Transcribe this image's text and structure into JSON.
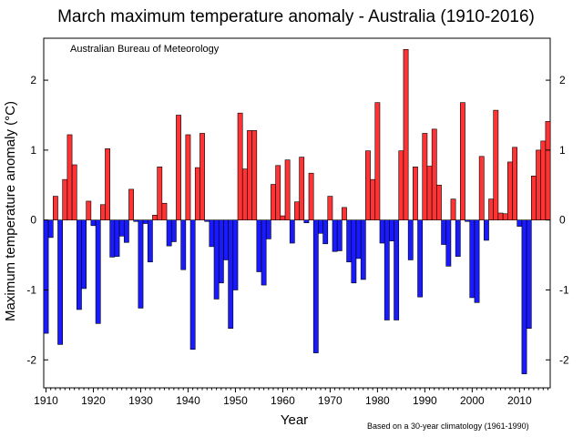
{
  "chart_data": {
    "type": "bar",
    "title": "March maximum temperature anomaly - Australia (1910-2016)",
    "annotation": "Australian Bureau of Meteorology",
    "footnote": "Based on a 30-year climatology (1961-1990)",
    "xlabel": "Year",
    "ylabel": "Maximum temperature anomaly (°C)",
    "xlim": [
      1910,
      2016
    ],
    "ylim": [
      -2.4,
      2.6
    ],
    "x_ticks": [
      1910,
      1920,
      1930,
      1940,
      1950,
      1960,
      1970,
      1980,
      1990,
      2000,
      2010
    ],
    "y_ticks": [
      -2,
      -1,
      0,
      1,
      2
    ],
    "y_tick_labels": [
      "-2",
      "-1",
      "0",
      "1",
      "2"
    ],
    "colors": {
      "positive": "#ff3333",
      "negative": "#1a1aff",
      "edge": "#000000"
    },
    "grid": false,
    "years": [
      1910,
      1911,
      1912,
      1913,
      1914,
      1915,
      1916,
      1917,
      1918,
      1919,
      1920,
      1921,
      1922,
      1923,
      1924,
      1925,
      1926,
      1927,
      1928,
      1929,
      1930,
      1931,
      1932,
      1933,
      1934,
      1935,
      1936,
      1937,
      1938,
      1939,
      1940,
      1941,
      1942,
      1943,
      1944,
      1945,
      1946,
      1947,
      1948,
      1949,
      1950,
      1951,
      1952,
      1953,
      1954,
      1955,
      1956,
      1957,
      1958,
      1959,
      1960,
      1961,
      1962,
      1963,
      1964,
      1965,
      1966,
      1967,
      1968,
      1969,
      1970,
      1971,
      1972,
      1973,
      1974,
      1975,
      1976,
      1977,
      1978,
      1979,
      1980,
      1981,
      1982,
      1983,
      1984,
      1985,
      1986,
      1987,
      1988,
      1989,
      1990,
      1991,
      1992,
      1993,
      1994,
      1995,
      1996,
      1997,
      1998,
      1999,
      2000,
      2001,
      2002,
      2003,
      2004,
      2005,
      2006,
      2007,
      2008,
      2009,
      2010,
      2011,
      2012,
      2013,
      2014,
      2015,
      2016
    ],
    "values": [
      -1.62,
      -0.25,
      0.34,
      -1.78,
      0.58,
      1.22,
      0.79,
      -1.28,
      -0.98,
      0.27,
      -0.08,
      -1.48,
      0.22,
      1.02,
      -0.53,
      -0.52,
      -0.23,
      -0.32,
      0.44,
      -0.02,
      -1.26,
      -0.05,
      -0.6,
      0.07,
      0.76,
      0.24,
      -0.37,
      -0.31,
      1.5,
      -0.71,
      1.22,
      -1.85,
      0.75,
      1.24,
      -0.02,
      -0.38,
      -1.13,
      -0.9,
      -0.57,
      -1.55,
      -1.0,
      1.53,
      0.73,
      1.28,
      1.28,
      -0.74,
      -0.93,
      -0.27,
      0.51,
      0.78,
      0.06,
      0.86,
      -0.33,
      0.26,
      0.9,
      -0.04,
      0.67,
      -1.9,
      -0.19,
      -0.34,
      0.34,
      -0.45,
      -0.44,
      0.18,
      -0.6,
      -0.9,
      -0.55,
      -0.85,
      0.99,
      0.58,
      1.68,
      -0.33,
      -1.43,
      -0.3,
      -1.43,
      0.99,
      2.44,
      -0.57,
      0.76,
      -1.1,
      1.24,
      0.77,
      1.3,
      0.5,
      -0.35,
      -0.66,
      0.3,
      -0.52,
      1.68,
      -0.02,
      -1.11,
      -1.18,
      0.91,
      -0.29,
      0.3,
      1.57,
      0.1,
      0.09,
      0.83,
      1.04,
      -0.09,
      -2.2,
      -1.55,
      0.63,
      1.0,
      1.13,
      1.41
    ]
  }
}
